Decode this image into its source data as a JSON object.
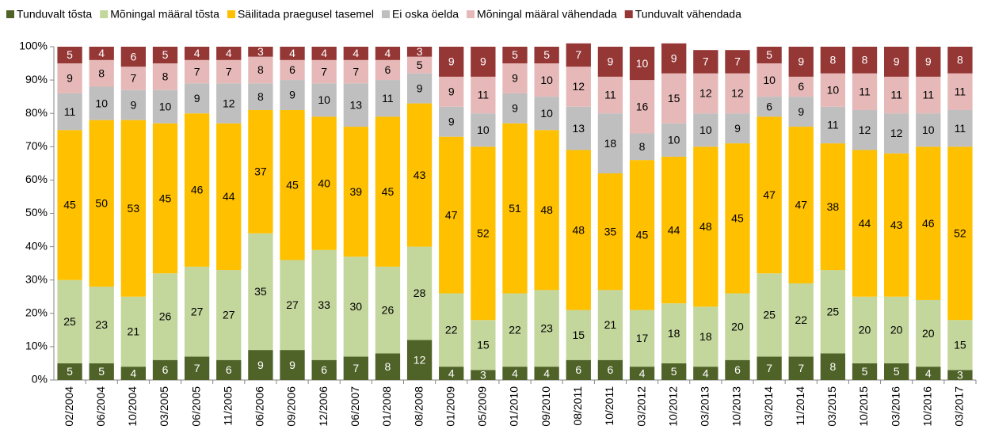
{
  "chart_data": {
    "type": "stacked_bar",
    "categories": [
      "02/2004",
      "06/2004",
      "10/2004",
      "03/2005",
      "06/2005",
      "11/2005",
      "06/2006",
      "09/2006",
      "12/2006",
      "06/2007",
      "01/2008",
      "08/2008",
      "01/2009",
      "05/2009",
      "01/2010",
      "09/2010",
      "08/2011",
      "10/2011",
      "03/2012",
      "10/2012",
      "03/2013",
      "10/2013",
      "03/2014",
      "11/2014",
      "03/2015",
      "10/2015",
      "03/2016",
      "10/2016",
      "03/2017"
    ],
    "series": [
      {
        "name": "Tunduvalt tõsta",
        "color": "#4f6228",
        "values": [
          5,
          5,
          4,
          6,
          7,
          6,
          9,
          9,
          6,
          7,
          8,
          12,
          4,
          3,
          4,
          4,
          6,
          6,
          4,
          5,
          4,
          6,
          7,
          7,
          8,
          5,
          5,
          4,
          3
        ]
      },
      {
        "name": "Mõningal määral tõsta",
        "color": "#c3d69b",
        "values": [
          25,
          23,
          21,
          26,
          27,
          27,
          35,
          27,
          33,
          30,
          26,
          28,
          22,
          15,
          22,
          23,
          15,
          21,
          17,
          18,
          18,
          20,
          25,
          22,
          25,
          20,
          20,
          20,
          15
        ]
      },
      {
        "name": "Säilitada praegusel tasemel",
        "color": "#ffc000",
        "values": [
          45,
          50,
          53,
          45,
          46,
          44,
          37,
          45,
          40,
          39,
          45,
          43,
          47,
          52,
          51,
          48,
          48,
          35,
          45,
          44,
          48,
          45,
          47,
          47,
          38,
          44,
          43,
          46,
          52
        ]
      },
      {
        "name": "Ei oska öelda",
        "color": "#bfbfbf",
        "values": [
          11,
          10,
          9,
          10,
          9,
          12,
          8,
          9,
          10,
          13,
          11,
          9,
          9,
          10,
          9,
          10,
          13,
          18,
          8,
          10,
          10,
          9,
          6,
          9,
          11,
          12,
          12,
          10,
          11
        ]
      },
      {
        "name": "Mõningal määral vähendada",
        "color": "#e6b9b8",
        "values": [
          9,
          8,
          7,
          8,
          7,
          7,
          8,
          6,
          7,
          7,
          6,
          5,
          9,
          11,
          9,
          10,
          12,
          11,
          16,
          15,
          12,
          12,
          10,
          6,
          10,
          11,
          11,
          11,
          11
        ]
      },
      {
        "name": "Tunduvalt vähendada",
        "color": "#953735",
        "values": [
          5,
          4,
          6,
          5,
          4,
          4,
          3,
          4,
          4,
          4,
          4,
          3,
          9,
          9,
          5,
          5,
          7,
          9,
          10,
          9,
          7,
          7,
          5,
          9,
          8,
          8,
          9,
          9,
          8
        ]
      }
    ],
    "ylim": [
      0,
      100
    ],
    "yticks": [
      {
        "value": 0,
        "label": "0%"
      },
      {
        "value": 10,
        "label": "10%"
      },
      {
        "value": 20,
        "label": "20%"
      },
      {
        "value": 30,
        "label": "30%"
      },
      {
        "value": 40,
        "label": "40%"
      },
      {
        "value": 50,
        "label": "50%"
      },
      {
        "value": 60,
        "label": "60%"
      },
      {
        "value": 70,
        "label": "70%"
      },
      {
        "value": 80,
        "label": "80%"
      },
      {
        "value": 90,
        "label": "90%"
      },
      {
        "value": 100,
        "label": "100%"
      }
    ],
    "legend": "top"
  }
}
